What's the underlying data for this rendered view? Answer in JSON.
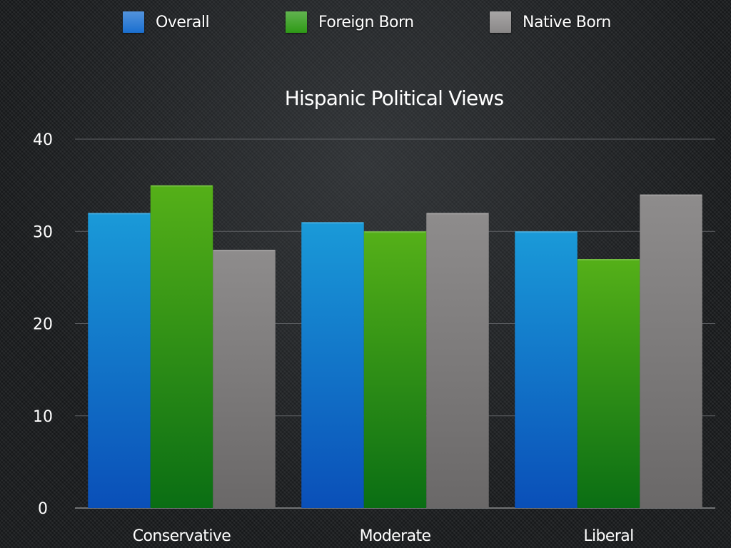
{
  "legend": {
    "items": [
      {
        "label": "Overall",
        "color": "#1a6fd0"
      },
      {
        "label": "Foreign Born",
        "color": "#2e9a16"
      },
      {
        "label": "Native Born",
        "color": "#8a8888"
      }
    ]
  },
  "chart_data": {
    "type": "bar",
    "title": "Hispanic Political Views",
    "xlabel": "",
    "ylabel": "",
    "categories": [
      "Conservative",
      "Moderate",
      "Liberal"
    ],
    "series": [
      {
        "name": "Overall",
        "values": [
          32,
          31,
          30
        ],
        "color": "#1a6fd0"
      },
      {
        "name": "Foreign Born",
        "values": [
          35,
          30,
          27
        ],
        "color": "#2e9a16"
      },
      {
        "name": "Native Born",
        "values": [
          28,
          32,
          34
        ],
        "color": "#8a8888"
      }
    ],
    "ylim": [
      0,
      40
    ],
    "yticks": [
      0,
      10,
      20,
      30,
      40
    ],
    "grid": true,
    "legend_position": "top"
  }
}
